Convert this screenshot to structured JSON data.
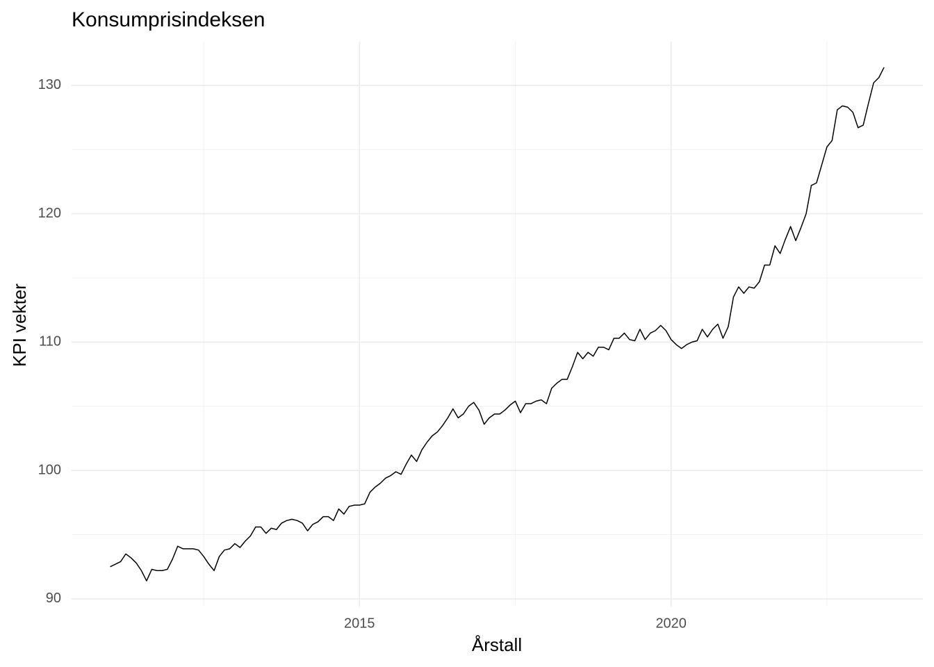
{
  "chart_data": {
    "type": "line",
    "title": "Konsumprisindeksen",
    "xlabel": "Årstall",
    "ylabel": "KPI vekter",
    "color": "#000000",
    "grid": true,
    "xlim": [
      2010.38,
      2024.04
    ],
    "xticks": [
      2015,
      2020
    ],
    "xminor": [
      2012.5,
      2017.5,
      2022.5
    ],
    "ylim": [
      89.4,
      133.4
    ],
    "yticks": [
      90,
      100,
      110,
      120,
      130
    ],
    "yminor": [
      95,
      105,
      115,
      125
    ],
    "x": [
      2011,
      2011.083,
      2011.167,
      2011.25,
      2011.333,
      2011.417,
      2011.5,
      2011.583,
      2011.667,
      2011.75,
      2011.833,
      2011.917,
      2012,
      2012.083,
      2012.167,
      2012.25,
      2012.333,
      2012.417,
      2012.5,
      2012.583,
      2012.667,
      2012.75,
      2012.833,
      2012.917,
      2013,
      2013.083,
      2013.167,
      2013.25,
      2013.333,
      2013.417,
      2013.5,
      2013.583,
      2013.667,
      2013.75,
      2013.833,
      2013.917,
      2014,
      2014.083,
      2014.167,
      2014.25,
      2014.333,
      2014.417,
      2014.5,
      2014.583,
      2014.667,
      2014.75,
      2014.833,
      2014.917,
      2015,
      2015.083,
      2015.167,
      2015.25,
      2015.333,
      2015.417,
      2015.5,
      2015.583,
      2015.667,
      2015.75,
      2015.833,
      2015.917,
      2016,
      2016.083,
      2016.167,
      2016.25,
      2016.333,
      2016.417,
      2016.5,
      2016.583,
      2016.667,
      2016.75,
      2016.833,
      2016.917,
      2017,
      2017.083,
      2017.167,
      2017.25,
      2017.333,
      2017.417,
      2017.5,
      2017.583,
      2017.667,
      2017.75,
      2017.833,
      2017.917,
      2018,
      2018.083,
      2018.167,
      2018.25,
      2018.333,
      2018.417,
      2018.5,
      2018.583,
      2018.667,
      2018.75,
      2018.833,
      2018.917,
      2019,
      2019.083,
      2019.167,
      2019.25,
      2019.333,
      2019.417,
      2019.5,
      2019.583,
      2019.667,
      2019.75,
      2019.833,
      2019.917,
      2020,
      2020.083,
      2020.167,
      2020.25,
      2020.333,
      2020.417,
      2020.5,
      2020.583,
      2020.667,
      2020.75,
      2020.833,
      2020.917,
      2021,
      2021.083,
      2021.167,
      2021.25,
      2021.333,
      2021.417,
      2021.5,
      2021.583,
      2021.667,
      2021.75,
      2021.833,
      2021.917,
      2022,
      2022.083,
      2022.167,
      2022.25,
      2022.333,
      2022.417,
      2022.5,
      2022.583,
      2022.667,
      2022.75,
      2022.833,
      2022.917,
      2023,
      2023.083,
      2023.167,
      2023.25,
      2023.333,
      2023.417
    ],
    "values": [
      92.5,
      92.7,
      92.9,
      93.5,
      93.2,
      92.8,
      92.2,
      91.4,
      92.3,
      92.2,
      92.2,
      92.3,
      93.1,
      94.1,
      93.9,
      93.9,
      93.9,
      93.8,
      93.3,
      92.7,
      92.2,
      93.3,
      93.8,
      93.9,
      94.3,
      94.0,
      94.5,
      94.9,
      95.6,
      95.6,
      95.1,
      95.5,
      95.4,
      95.9,
      96.1,
      96.2,
      96.1,
      95.9,
      95.3,
      95.8,
      96.0,
      96.4,
      96.4,
      96.1,
      97.0,
      96.6,
      97.2,
      97.3,
      97.3,
      97.4,
      98.3,
      98.7,
      99.0,
      99.4,
      99.6,
      99.9,
      99.7,
      100.5,
      101.2,
      100.7,
      101.6,
      102.2,
      102.7,
      103.0,
      103.5,
      104.1,
      104.8,
      104.1,
      104.4,
      105.0,
      105.3,
      104.7,
      103.6,
      104.1,
      104.4,
      104.4,
      104.7,
      105.1,
      105.4,
      104.5,
      105.2,
      105.2,
      105.4,
      105.5,
      105.2,
      106.4,
      106.8,
      107.1,
      107.1,
      108.1,
      109.2,
      108.7,
      109.2,
      108.9,
      109.6,
      109.6,
      109.4,
      110.3,
      110.3,
      110.7,
      110.2,
      110.1,
      111.0,
      110.2,
      110.7,
      110.9,
      111.3,
      110.9,
      110.2,
      109.8,
      109.5,
      109.8,
      110.0,
      110.1,
      111.0,
      110.4,
      111.0,
      111.4,
      110.3,
      111.2,
      113.5,
      114.3,
      113.8,
      114.3,
      114.2,
      114.7,
      116.0,
      116.0,
      117.5,
      116.9,
      118.0,
      119.0,
      117.9,
      118.9,
      120.0,
      122.2,
      122.4,
      123.8,
      125.2,
      125.7,
      128.1,
      128.4,
      128.3,
      127.9,
      126.7,
      126.9,
      128.6,
      130.2,
      130.6,
      131.4
    ]
  }
}
